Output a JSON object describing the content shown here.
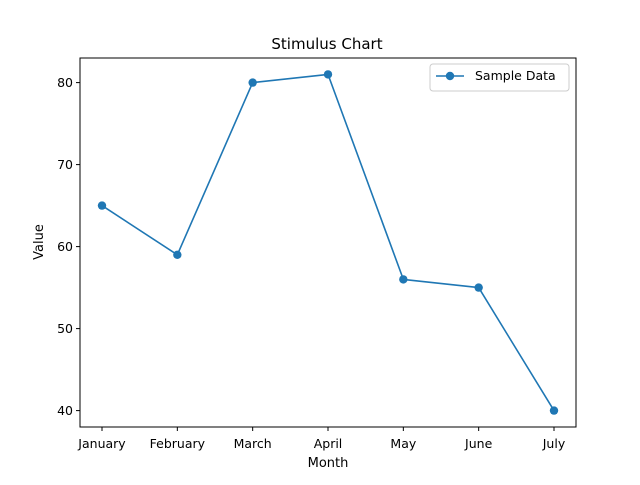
{
  "chart_data": {
    "type": "line",
    "title": "Stimulus Chart",
    "xlabel": "Month",
    "ylabel": "Value",
    "categories": [
      "January",
      "February",
      "March",
      "April",
      "May",
      "June",
      "July"
    ],
    "series": [
      {
        "name": "Sample Data",
        "values": [
          65,
          59,
          80,
          81,
          56,
          55,
          40
        ],
        "color": "#1f77b4",
        "marker": "circle"
      }
    ],
    "ylim": [
      38,
      83
    ],
    "yticks": [
      40,
      50,
      60,
      70,
      80
    ],
    "grid": false,
    "legend": "top-right"
  }
}
